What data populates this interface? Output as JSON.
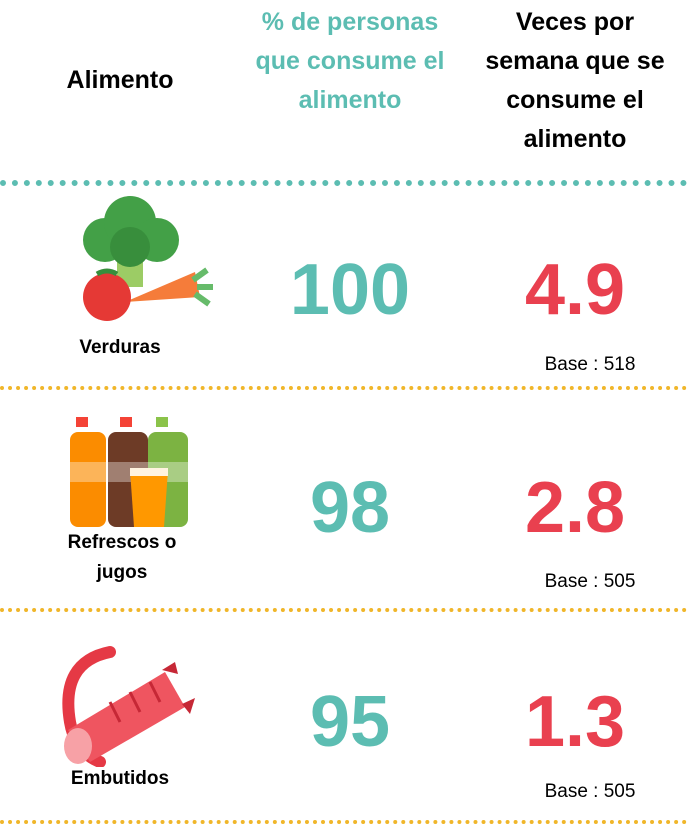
{
  "header": {
    "food": "Alimento",
    "percent": "% de personas que consume el alimento",
    "times": "Veces por semana que se consume el alimento"
  },
  "rows": [
    {
      "name": "Verduras",
      "percent": "100",
      "times": "4.9",
      "base": "Base : 518"
    },
    {
      "name": "Refrescos o jugos",
      "percent": "98",
      "times": "2.8",
      "base": "Base : 505"
    },
    {
      "name": "Embutidos",
      "percent": "95",
      "times": "1.3",
      "base": "Base : 505"
    }
  ]
}
